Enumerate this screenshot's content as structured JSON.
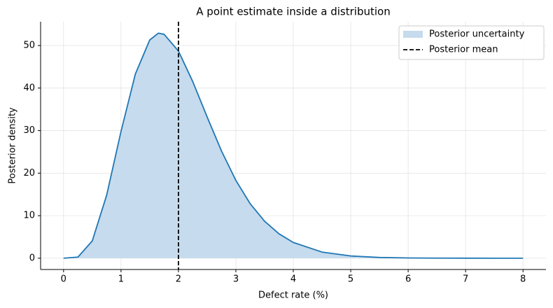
{
  "chart_data": {
    "type": "area",
    "title": "A point estimate inside a distribution",
    "xlabel": "Defect rate (%)",
    "ylabel": "Posterior density",
    "x": [
      0,
      0.25,
      0.5,
      0.75,
      1,
      1.25,
      1.5,
      1.65,
      1.75,
      2,
      2.25,
      2.5,
      2.75,
      3,
      3.25,
      3.5,
      3.75,
      4,
      4.5,
      5,
      5.5,
      6,
      6.5,
      7,
      7.5,
      8
    ],
    "series": [
      {
        "name": "Posterior uncertainty",
        "color": "#1f77b4",
        "fill_color": "#c6dbed",
        "values": [
          0,
          0.27,
          4.07,
          14.8,
          29.8,
          43.3,
          51.3,
          52.9,
          52.65,
          48.7,
          41.5,
          33.2,
          25.2,
          18.3,
          12.8,
          8.7,
          5.75,
          3.7,
          1.45,
          0.53,
          0.18,
          0.06,
          0.02,
          0.01,
          0,
          0
        ]
      }
    ],
    "reference_line": {
      "name": "Posterior mean",
      "x": 2,
      "color": "#000000",
      "dashed": true
    },
    "xlim": [
      -0.4,
      8.4
    ],
    "ylim": [
      -2.65,
      55.6
    ],
    "xticks": [
      0,
      1,
      2,
      3,
      4,
      5,
      6,
      7,
      8
    ],
    "yticks": [
      0,
      10,
      20,
      30,
      40,
      50
    ],
    "grid": true,
    "legend": "upper right"
  }
}
